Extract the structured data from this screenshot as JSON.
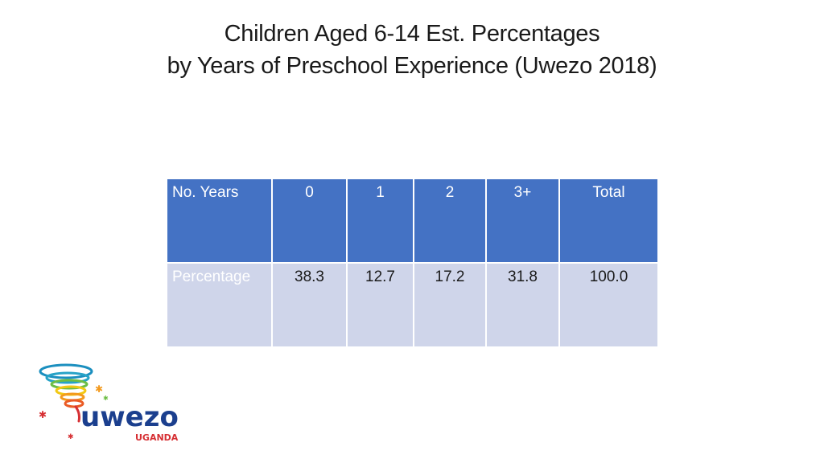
{
  "title": {
    "line1": "Children Aged 6-14 Est. Percentages",
    "line2": "by Years of Preschool Experience (Uwezo 2018)"
  },
  "table": {
    "row_header_label": "No. Years",
    "columns": [
      "0",
      "1",
      "2",
      "3+",
      "Total"
    ],
    "rows": [
      {
        "label": "Percentage",
        "values": [
          "38.3",
          "12.7",
          "17.2",
          "31.8",
          "100.0"
        ]
      }
    ]
  },
  "logo": {
    "wordmark": "uwezo",
    "country": "UGANDA"
  },
  "colors": {
    "header_fill": "#4472c4",
    "body_fill": "#cfd5ea",
    "logo_blue": "#1b3f8e",
    "logo_red": "#d62f33"
  }
}
